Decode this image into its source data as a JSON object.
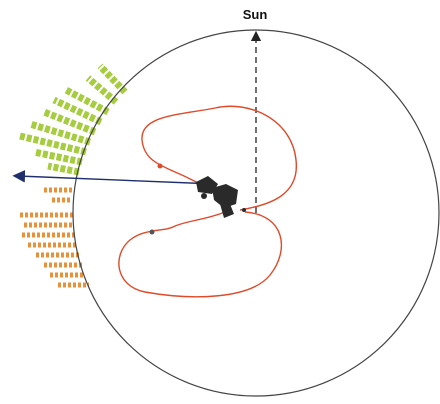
{
  "label": "Sun"
}
